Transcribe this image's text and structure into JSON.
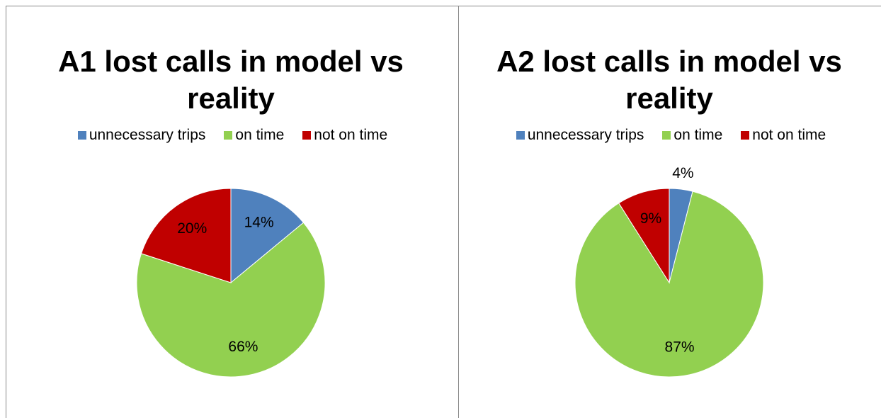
{
  "chart_data": [
    {
      "type": "pie",
      "title": "A1 lost calls in model vs reality",
      "categories": [
        "unnecessary trips",
        "on time",
        "not on time"
      ],
      "values": [
        14,
        66,
        20
      ],
      "value_labels": [
        "14%",
        "66%",
        "20%"
      ],
      "colors": [
        "#4f81bd",
        "#92d050",
        "#c00000"
      ]
    },
    {
      "type": "pie",
      "title": "A2 lost calls in model vs reality",
      "categories": [
        "unnecessary trips",
        "on time",
        "not on time"
      ],
      "values": [
        4,
        87,
        9
      ],
      "value_labels": [
        "4%",
        "87%",
        "9%"
      ],
      "colors": [
        "#4f81bd",
        "#92d050",
        "#c00000"
      ]
    }
  ]
}
